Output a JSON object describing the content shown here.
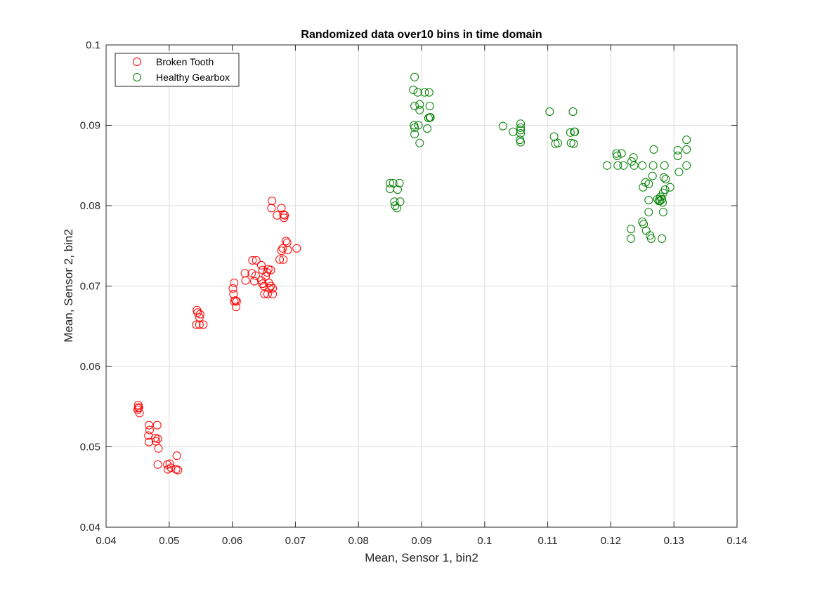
{
  "chart_data": {
    "type": "scatter",
    "title": "Randomized data over10 bins in time domain",
    "xlabel": "Mean, Sensor 1, bin2",
    "ylabel": "Mean, Sensor 2, bin2",
    "xlim": [
      0.04,
      0.14
    ],
    "ylim": [
      0.04,
      0.1
    ],
    "xticks": [
      "0.04",
      "0.05",
      "0.06",
      "0.07",
      "0.08",
      "0.09",
      "0.1",
      "0.11",
      "0.12",
      "0.13",
      "0.14"
    ],
    "yticks": [
      "0.04",
      "0.05",
      "0.06",
      "0.07",
      "0.08",
      "0.09",
      "0.1"
    ],
    "grid": true,
    "legend_position": "top-left",
    "marker": "circle-open",
    "series": [
      {
        "name": "Broken Tooth",
        "color": "#ff0000",
        "points": [
          [
            0.0451,
            0.0552
          ],
          [
            0.0452,
            0.0549
          ],
          [
            0.045,
            0.0546
          ],
          [
            0.0453,
            0.0542
          ],
          [
            0.0451,
            0.0548
          ],
          [
            0.0468,
            0.0527
          ],
          [
            0.0469,
            0.0521
          ],
          [
            0.0467,
            0.0514
          ],
          [
            0.0468,
            0.0506
          ],
          [
            0.0478,
            0.0511
          ],
          [
            0.0481,
            0.0527
          ],
          [
            0.0482,
            0.051
          ],
          [
            0.0479,
            0.0507
          ],
          [
            0.0483,
            0.0498
          ],
          [
            0.0482,
            0.0478
          ],
          [
            0.0497,
            0.0478
          ],
          [
            0.0498,
            0.0472
          ],
          [
            0.0501,
            0.0479
          ],
          [
            0.0503,
            0.0474
          ],
          [
            0.0512,
            0.0489
          ],
          [
            0.0511,
            0.0472
          ],
          [
            0.0514,
            0.0471
          ],
          [
            0.0544,
            0.067
          ],
          [
            0.0545,
            0.0667
          ],
          [
            0.0549,
            0.0665
          ],
          [
            0.0548,
            0.0661
          ],
          [
            0.0543,
            0.0652
          ],
          [
            0.0548,
            0.0652
          ],
          [
            0.0554,
            0.0652
          ],
          [
            0.0601,
            0.0697
          ],
          [
            0.0603,
            0.0704
          ],
          [
            0.0602,
            0.069
          ],
          [
            0.0605,
            0.0682
          ],
          [
            0.0603,
            0.0681
          ],
          [
            0.0607,
            0.0681
          ],
          [
            0.0606,
            0.0674
          ],
          [
            0.062,
            0.0716
          ],
          [
            0.0621,
            0.0707
          ],
          [
            0.0632,
            0.0732
          ],
          [
            0.0631,
            0.0716
          ],
          [
            0.0637,
            0.0713
          ],
          [
            0.0638,
            0.0732
          ],
          [
            0.0635,
            0.0706
          ],
          [
            0.0646,
            0.0726
          ],
          [
            0.0648,
            0.072
          ],
          [
            0.0646,
            0.0707
          ],
          [
            0.0648,
            0.0703
          ],
          [
            0.065,
            0.07
          ],
          [
            0.0651,
            0.069
          ],
          [
            0.0653,
            0.0712
          ],
          [
            0.0655,
            0.0717
          ],
          [
            0.0657,
            0.0721
          ],
          [
            0.0658,
            0.0704
          ],
          [
            0.0659,
            0.0697
          ],
          [
            0.0661,
            0.07
          ],
          [
            0.0656,
            0.069
          ],
          [
            0.0664,
            0.0697
          ],
          [
            0.0664,
            0.069
          ],
          [
            0.0661,
            0.072
          ],
          [
            0.0663,
            0.0806
          ],
          [
            0.0662,
            0.0797
          ],
          [
            0.0671,
            0.0788
          ],
          [
            0.0678,
            0.0797
          ],
          [
            0.0681,
            0.0789
          ],
          [
            0.0682,
            0.0785
          ],
          [
            0.0683,
            0.0788
          ],
          [
            0.0675,
            0.0733
          ],
          [
            0.0678,
            0.0744
          ],
          [
            0.068,
            0.0747
          ],
          [
            0.0681,
            0.0733
          ],
          [
            0.0685,
            0.0756
          ],
          [
            0.0687,
            0.0754
          ],
          [
            0.0688,
            0.0745
          ],
          [
            0.0702,
            0.0747
          ]
        ]
      },
      {
        "name": "Healthy Gearbox",
        "color": "#008000",
        "points": [
          [
            0.085,
            0.0828
          ],
          [
            0.085,
            0.0821
          ],
          [
            0.0855,
            0.0828
          ],
          [
            0.0857,
            0.0805
          ],
          [
            0.0858,
            0.08
          ],
          [
            0.0861,
            0.0797
          ],
          [
            0.0862,
            0.082
          ],
          [
            0.0865,
            0.0828
          ],
          [
            0.0866,
            0.0805
          ],
          [
            0.0887,
            0.0944
          ],
          [
            0.0889,
            0.096
          ],
          [
            0.0889,
            0.0924
          ],
          [
            0.0888,
            0.09
          ],
          [
            0.0889,
            0.0897
          ],
          [
            0.0889,
            0.0889
          ],
          [
            0.0894,
            0.0941
          ],
          [
            0.0897,
            0.0926
          ],
          [
            0.0897,
            0.0919
          ],
          [
            0.0895,
            0.09
          ],
          [
            0.0897,
            0.0878
          ],
          [
            0.0905,
            0.0941
          ],
          [
            0.0909,
            0.0896
          ],
          [
            0.0911,
            0.0909
          ],
          [
            0.0912,
            0.0941
          ],
          [
            0.0913,
            0.0924
          ],
          [
            0.0913,
            0.091
          ],
          [
            0.0914,
            0.091
          ],
          [
            0.1029,
            0.0899
          ],
          [
            0.1045,
            0.0892
          ],
          [
            0.1057,
            0.0902
          ],
          [
            0.1057,
            0.0897
          ],
          [
            0.1057,
            0.0894
          ],
          [
            0.1057,
            0.089
          ],
          [
            0.1056,
            0.0882
          ],
          [
            0.1057,
            0.0879
          ],
          [
            0.1103,
            0.0917
          ],
          [
            0.111,
            0.0886
          ],
          [
            0.1112,
            0.0877
          ],
          [
            0.1116,
            0.0878
          ],
          [
            0.1136,
            0.0891
          ],
          [
            0.1137,
            0.0878
          ],
          [
            0.114,
            0.0917
          ],
          [
            0.1141,
            0.0877
          ],
          [
            0.1142,
            0.0892
          ],
          [
            0.1143,
            0.0892
          ],
          [
            0.1194,
            0.085
          ],
          [
            0.1209,
            0.0865
          ],
          [
            0.121,
            0.0862
          ],
          [
            0.1211,
            0.085
          ],
          [
            0.1217,
            0.0865
          ],
          [
            0.122,
            0.085
          ],
          [
            0.1233,
            0.0855
          ],
          [
            0.1236,
            0.086
          ],
          [
            0.1237,
            0.085
          ],
          [
            0.125,
            0.085
          ],
          [
            0.1251,
            0.0823
          ],
          [
            0.1255,
            0.0829
          ],
          [
            0.126,
            0.0827
          ],
          [
            0.1266,
            0.0837
          ],
          [
            0.1267,
            0.085
          ],
          [
            0.1268,
            0.087
          ],
          [
            0.1274,
            0.0808
          ],
          [
            0.1276,
            0.0806
          ],
          [
            0.1278,
            0.0806
          ],
          [
            0.1279,
            0.0811
          ],
          [
            0.1281,
            0.0808
          ],
          [
            0.1282,
            0.0804
          ],
          [
            0.1283,
            0.0816
          ],
          [
            0.1283,
            0.0792
          ],
          [
            0.1284,
            0.0835
          ],
          [
            0.1285,
            0.085
          ],
          [
            0.1287,
            0.0833
          ],
          [
            0.1286,
            0.082
          ],
          [
            0.1294,
            0.0823
          ],
          [
            0.1306,
            0.0869
          ],
          [
            0.1306,
            0.0862
          ],
          [
            0.1308,
            0.0842
          ],
          [
            0.132,
            0.0882
          ],
          [
            0.132,
            0.087
          ],
          [
            0.132,
            0.085
          ],
          [
            0.126,
            0.0807
          ],
          [
            0.126,
            0.0792
          ],
          [
            0.125,
            0.078
          ],
          [
            0.1252,
            0.0777
          ],
          [
            0.1256,
            0.0769
          ],
          [
            0.1262,
            0.0763
          ],
          [
            0.1264,
            0.0759
          ],
          [
            0.1232,
            0.0771
          ],
          [
            0.1232,
            0.0759
          ],
          [
            0.1281,
            0.0759
          ]
        ]
      }
    ]
  }
}
